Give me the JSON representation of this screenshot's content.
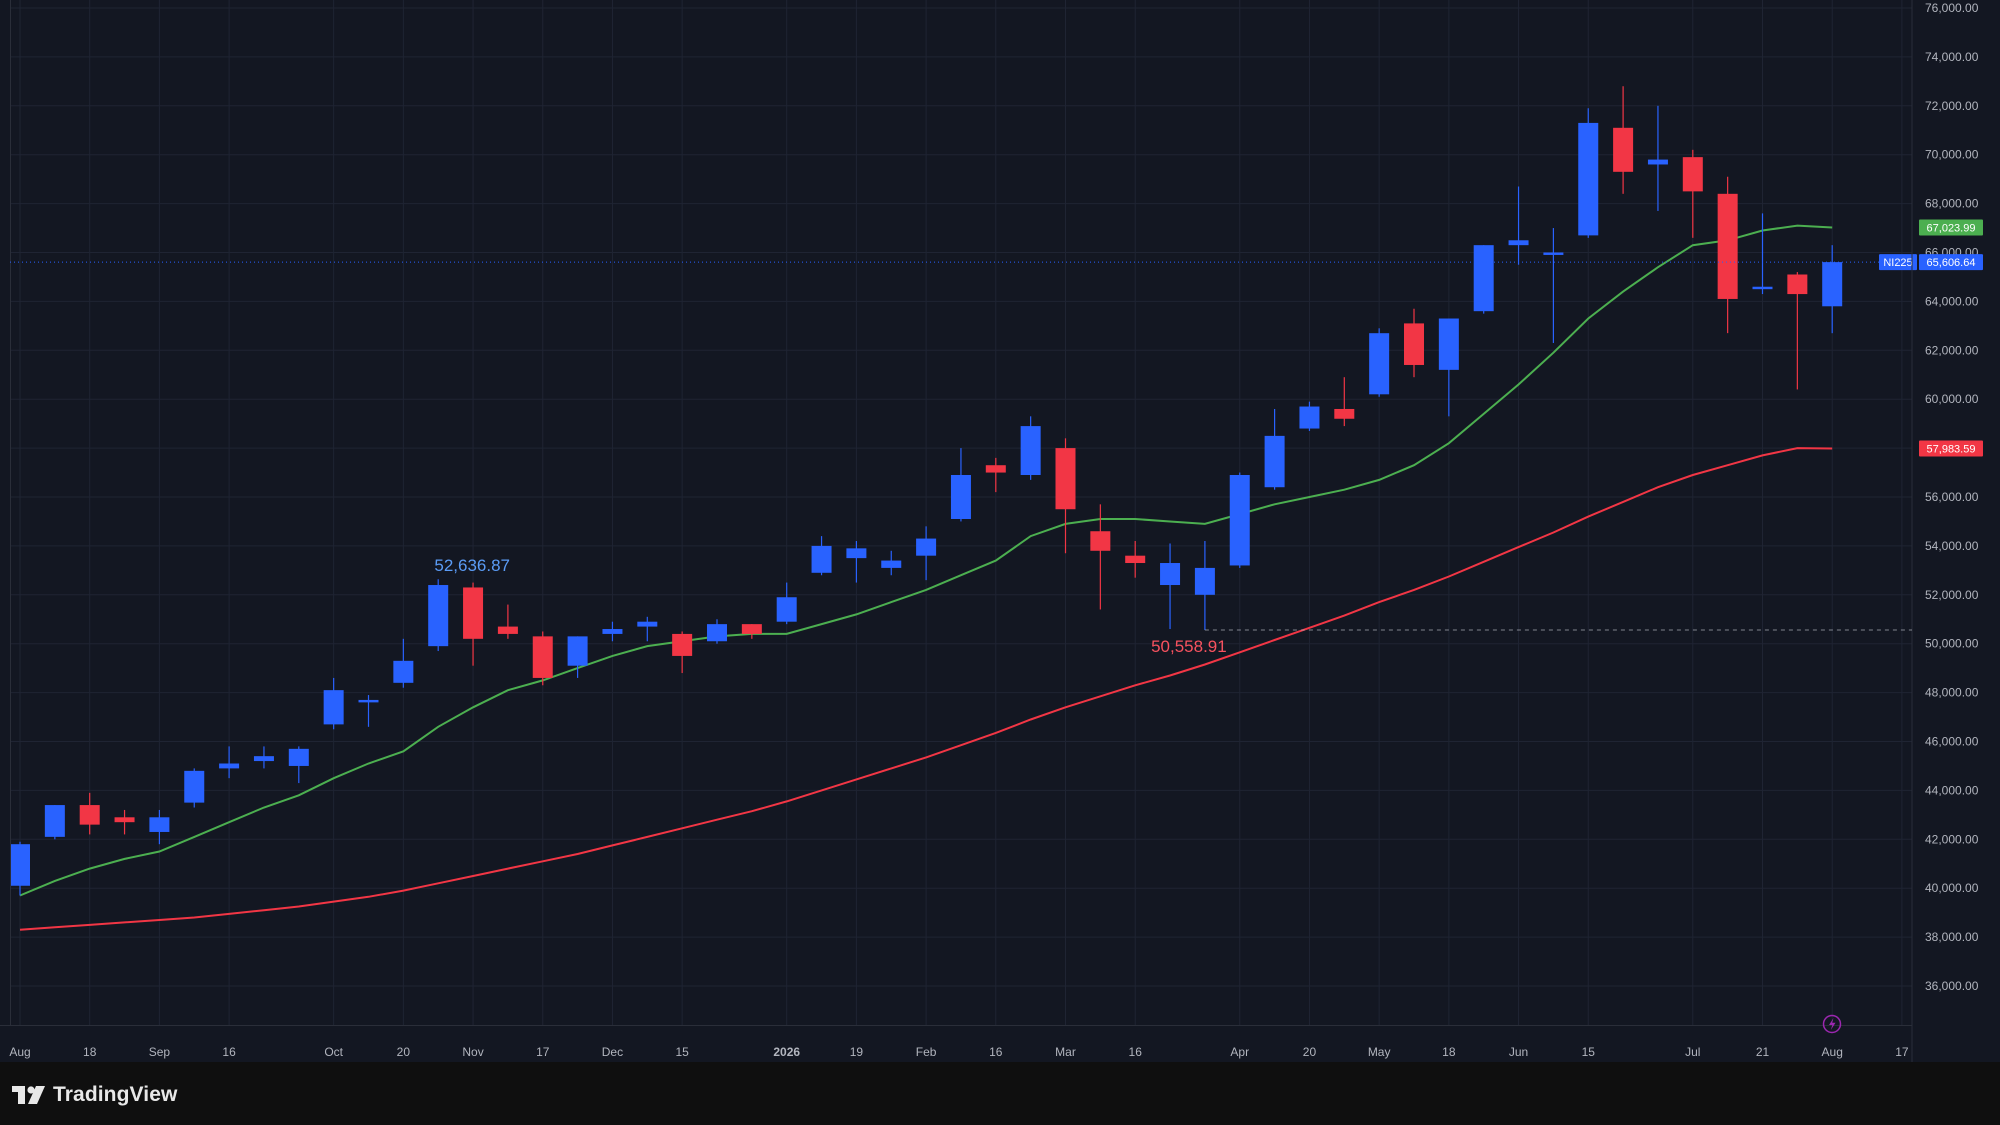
{
  "brand": {
    "name": "TradingView",
    "logo_icon": "tradingview-logo-icon"
  },
  "colors": {
    "background": "#131722",
    "grid": "#1f2433",
    "up": "#2962ff",
    "down": "#f23645",
    "ma_short": "#4caf50",
    "ma_long": "#f23645",
    "last_price_label": "#2962ff",
    "axis_text": "#b2b5be"
  },
  "chart_data": {
    "type": "candlestick",
    "symbol": "NI225",
    "interval": "weekly",
    "price_scale": {
      "min": 34000,
      "max": 76000,
      "ticks": [
        "76,000.00",
        "74,000.00",
        "72,000.00",
        "70,000.00",
        "68,000.00",
        "66,000.00",
        "64,000.00",
        "62,000.00",
        "60,000.00",
        "58,000.00",
        "56,000.00",
        "54,000.00",
        "52,000.00",
        "50,000.00",
        "48,000.00",
        "46,000.00",
        "44,000.00",
        "42,000.00",
        "40,000.00",
        "38,000.00",
        "36,000.00"
      ]
    },
    "time_axis": {
      "labels": [
        {
          "text": "Aug",
          "i": 0
        },
        {
          "text": "18",
          "i": 2
        },
        {
          "text": "Sep",
          "i": 4
        },
        {
          "text": "16",
          "i": 6
        },
        {
          "text": "Oct",
          "i": 9
        },
        {
          "text": "20",
          "i": 11
        },
        {
          "text": "Nov",
          "i": 13
        },
        {
          "text": "17",
          "i": 15
        },
        {
          "text": "Dec",
          "i": 17
        },
        {
          "text": "15",
          "i": 19
        },
        {
          "text": "2026",
          "i": 22,
          "bold": true
        },
        {
          "text": "19",
          "i": 24
        },
        {
          "text": "Feb",
          "i": 26
        },
        {
          "text": "16",
          "i": 28
        },
        {
          "text": "Mar",
          "i": 30
        },
        {
          "text": "16",
          "i": 32
        },
        {
          "text": "Apr",
          "i": 35
        },
        {
          "text": "20",
          "i": 37
        },
        {
          "text": "May",
          "i": 39
        },
        {
          "text": "18",
          "i": 41
        },
        {
          "text": "Jun",
          "i": 43
        },
        {
          "text": "15",
          "i": 45
        },
        {
          "text": "Jul",
          "i": 48
        },
        {
          "text": "21",
          "i": 50
        },
        {
          "text": "Aug",
          "i": 52
        },
        {
          "text": "17",
          "i": 54
        }
      ]
    },
    "candles": [
      {
        "o": 40100,
        "h": 41900,
        "l": 39700,
        "c": 41800
      },
      {
        "o": 42100,
        "h": 43400,
        "l": 42000,
        "c": 43400
      },
      {
        "o": 43400,
        "h": 43900,
        "l": 42200,
        "c": 42600
      },
      {
        "o": 42900,
        "h": 43200,
        "l": 42200,
        "c": 42700
      },
      {
        "o": 42300,
        "h": 43200,
        "l": 41800,
        "c": 42900
      },
      {
        "o": 43500,
        "h": 44900,
        "l": 43300,
        "c": 44800
      },
      {
        "o": 44900,
        "h": 45800,
        "l": 44500,
        "c": 45100
      },
      {
        "o": 45200,
        "h": 45800,
        "l": 44900,
        "c": 45400
      },
      {
        "o": 45000,
        "h": 45800,
        "l": 44300,
        "c": 45700
      },
      {
        "o": 46700,
        "h": 48600,
        "l": 46500,
        "c": 48100
      },
      {
        "o": 47600,
        "h": 47900,
        "l": 46600,
        "c": 47700
      },
      {
        "o": 48400,
        "h": 50200,
        "l": 48200,
        "c": 49300
      },
      {
        "o": 49900,
        "h": 52636.87,
        "l": 49700,
        "c": 52400
      },
      {
        "o": 52300,
        "h": 52500,
        "l": 49100,
        "c": 50200
      },
      {
        "o": 50700,
        "h": 51600,
        "l": 50200,
        "c": 50400
      },
      {
        "o": 50300,
        "h": 50500,
        "l": 48300,
        "c": 48600
      },
      {
        "o": 49100,
        "h": 50300,
        "l": 48600,
        "c": 50300
      },
      {
        "o": 50400,
        "h": 50900,
        "l": 50100,
        "c": 50600
      },
      {
        "o": 50700,
        "h": 51100,
        "l": 50100,
        "c": 50900
      },
      {
        "o": 50400,
        "h": 50500,
        "l": 48800,
        "c": 49500
      },
      {
        "o": 50100,
        "h": 51000,
        "l": 50000,
        "c": 50800
      },
      {
        "o": 50800,
        "h": 50800,
        "l": 50200,
        "c": 50400
      },
      {
        "o": 50900,
        "h": 52500,
        "l": 50800,
        "c": 51900
      },
      {
        "o": 52900,
        "h": 54400,
        "l": 52800,
        "c": 54000
      },
      {
        "o": 53500,
        "h": 54200,
        "l": 52500,
        "c": 53900
      },
      {
        "o": 53100,
        "h": 53800,
        "l": 52800,
        "c": 53400
      },
      {
        "o": 53600,
        "h": 54800,
        "l": 52600,
        "c": 54300
      },
      {
        "o": 55100,
        "h": 58000,
        "l": 55000,
        "c": 56900
      },
      {
        "o": 57300,
        "h": 57600,
        "l": 56200,
        "c": 57000
      },
      {
        "o": 56900,
        "h": 59300,
        "l": 56700,
        "c": 58900
      },
      {
        "o": 58000,
        "h": 58400,
        "l": 53700,
        "c": 55500
      },
      {
        "o": 54600,
        "h": 55700,
        "l": 51400,
        "c": 53800
      },
      {
        "o": 53600,
        "h": 54200,
        "l": 52700,
        "c": 53300
      },
      {
        "o": 52400,
        "h": 54100,
        "l": 50600,
        "c": 53300
      },
      {
        "o": 52000,
        "h": 54200,
        "l": 50558.91,
        "c": 53100
      },
      {
        "o": 53200,
        "h": 57000,
        "l": 53100,
        "c": 56900
      },
      {
        "o": 56400,
        "h": 59600,
        "l": 56300,
        "c": 58500
      },
      {
        "o": 58800,
        "h": 59900,
        "l": 58700,
        "c": 59700
      },
      {
        "o": 59600,
        "h": 60900,
        "l": 58900,
        "c": 59200
      },
      {
        "o": 60200,
        "h": 62900,
        "l": 60100,
        "c": 62700
      },
      {
        "o": 63100,
        "h": 63700,
        "l": 60900,
        "c": 61400
      },
      {
        "o": 61200,
        "h": 63300,
        "l": 59300,
        "c": 63300
      },
      {
        "o": 63600,
        "h": 66300,
        "l": 63500,
        "c": 66300
      },
      {
        "o": 66300,
        "h": 68700,
        "l": 65500,
        "c": 66500
      },
      {
        "o": 65900,
        "h": 67000,
        "l": 62300,
        "c": 66000
      },
      {
        "o": 66700,
        "h": 71900,
        "l": 66600,
        "c": 71300
      },
      {
        "o": 71100,
        "h": 72800,
        "l": 68400,
        "c": 69300
      },
      {
        "o": 69600,
        "h": 72000,
        "l": 67700,
        "c": 69800
      },
      {
        "o": 69900,
        "h": 70200,
        "l": 66600,
        "c": 68500
      },
      {
        "o": 68400,
        "h": 69100,
        "l": 62700,
        "c": 64100
      },
      {
        "o": 64500,
        "h": 67600,
        "l": 64300,
        "c": 64600
      },
      {
        "o": 65100,
        "h": 65200,
        "l": 60400,
        "c": 64300
      },
      {
        "o": 63800,
        "h": 66300,
        "l": 62700,
        "c": 65606.64
      }
    ],
    "ma_short": [
      39700,
      40300,
      40800,
      41200,
      41500,
      42100,
      42700,
      43300,
      43800,
      44500,
      45100,
      45600,
      46600,
      47400,
      48100,
      48500,
      49000,
      49500,
      49900,
      50100,
      50300,
      50400,
      50400,
      50800,
      51200,
      51700,
      52200,
      52800,
      53400,
      54400,
      54900,
      55100,
      55100,
      55000,
      54900,
      55300,
      55700,
      56000,
      56300,
      56700,
      57300,
      58200,
      59400,
      60600,
      61900,
      63300,
      64400,
      65400,
      66300,
      66500,
      66900,
      67100,
      67023.99
    ],
    "ma_long": [
      38300,
      38400,
      38500,
      38600,
      38700,
      38800,
      38950,
      39100,
      39250,
      39450,
      39650,
      39900,
      40200,
      40500,
      40800,
      41100,
      41400,
      41750,
      42100,
      42450,
      42800,
      43150,
      43550,
      44000,
      44450,
      44900,
      45350,
      45850,
      46350,
      46900,
      47400,
      47850,
      48300,
      48700,
      49150,
      49650,
      50150,
      50650,
      51150,
      51700,
      52200,
      52750,
      53350,
      53950,
      54550,
      55200,
      55800,
      56400,
      56900,
      57300,
      57700,
      58000,
      57983.59
    ],
    "annotations": {
      "high_label": "52,636.87",
      "high_value": 52636.87,
      "high_index": 12,
      "low_label": "50,558.91",
      "low_value": 50558.91,
      "low_index": 34
    },
    "price_labels": [
      {
        "value": 67023.99,
        "text": "67,023.99",
        "color": "#4caf50",
        "kind": "ma-short"
      },
      {
        "value": 65606.64,
        "text": "65,606.64",
        "color": "#2962ff",
        "kind": "last-price",
        "symbol": "NI225"
      },
      {
        "value": 57983.59,
        "text": "57,983.59",
        "color": "#f23645",
        "kind": "ma-long"
      }
    ],
    "grid": true
  }
}
